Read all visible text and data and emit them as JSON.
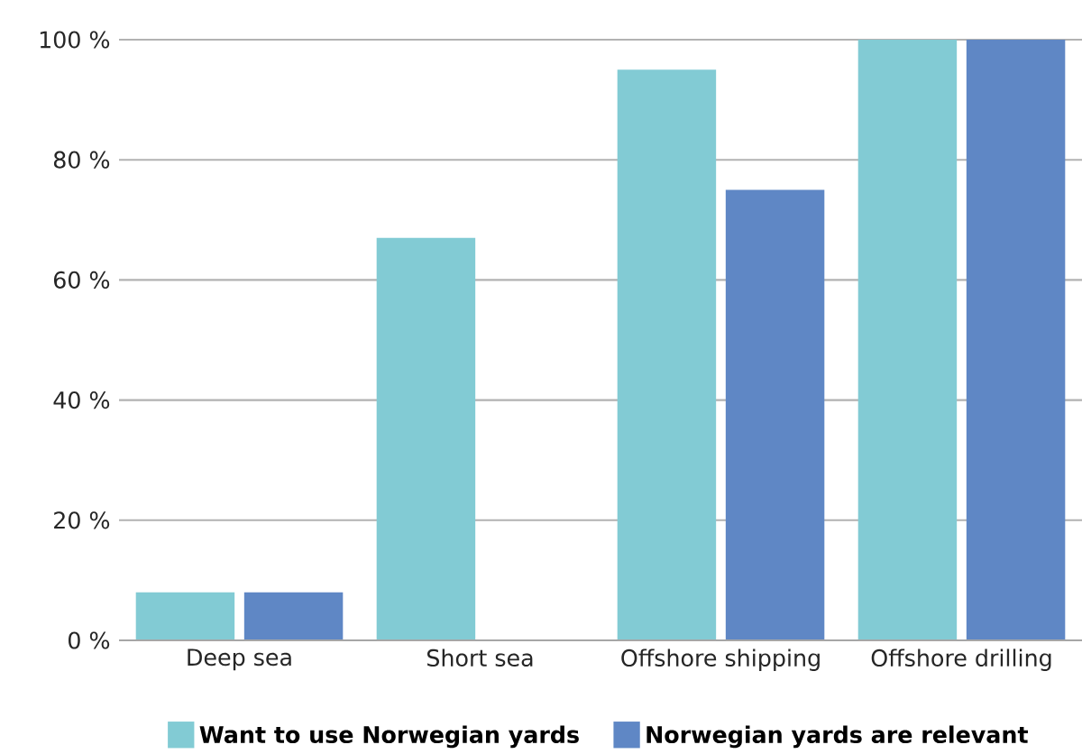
{
  "chart_data": {
    "type": "bar",
    "categories": [
      "Deep sea",
      "Short sea",
      "Offshore shipping",
      "Offshore drilling"
    ],
    "series": [
      {
        "name": "Want to use Norwegian yards",
        "color": "#82cbd4",
        "values": [
          8,
          67,
          95,
          100
        ]
      },
      {
        "name": "Norwegian yards are relevant",
        "color": "#5f87c5",
        "values": [
          8,
          0,
          75,
          100
        ]
      }
    ],
    "ylim": [
      0,
      100
    ],
    "yticks": [
      {
        "value": 0,
        "label": "0 %"
      },
      {
        "value": 20,
        "label": "20 %"
      },
      {
        "value": 40,
        "label": "40 %"
      },
      {
        "value": 60,
        "label": "60 %"
      },
      {
        "value": 80,
        "label": "80 %"
      },
      {
        "value": 100,
        "label": "100 %"
      }
    ],
    "grid": "y",
    "legend": "bottom"
  }
}
